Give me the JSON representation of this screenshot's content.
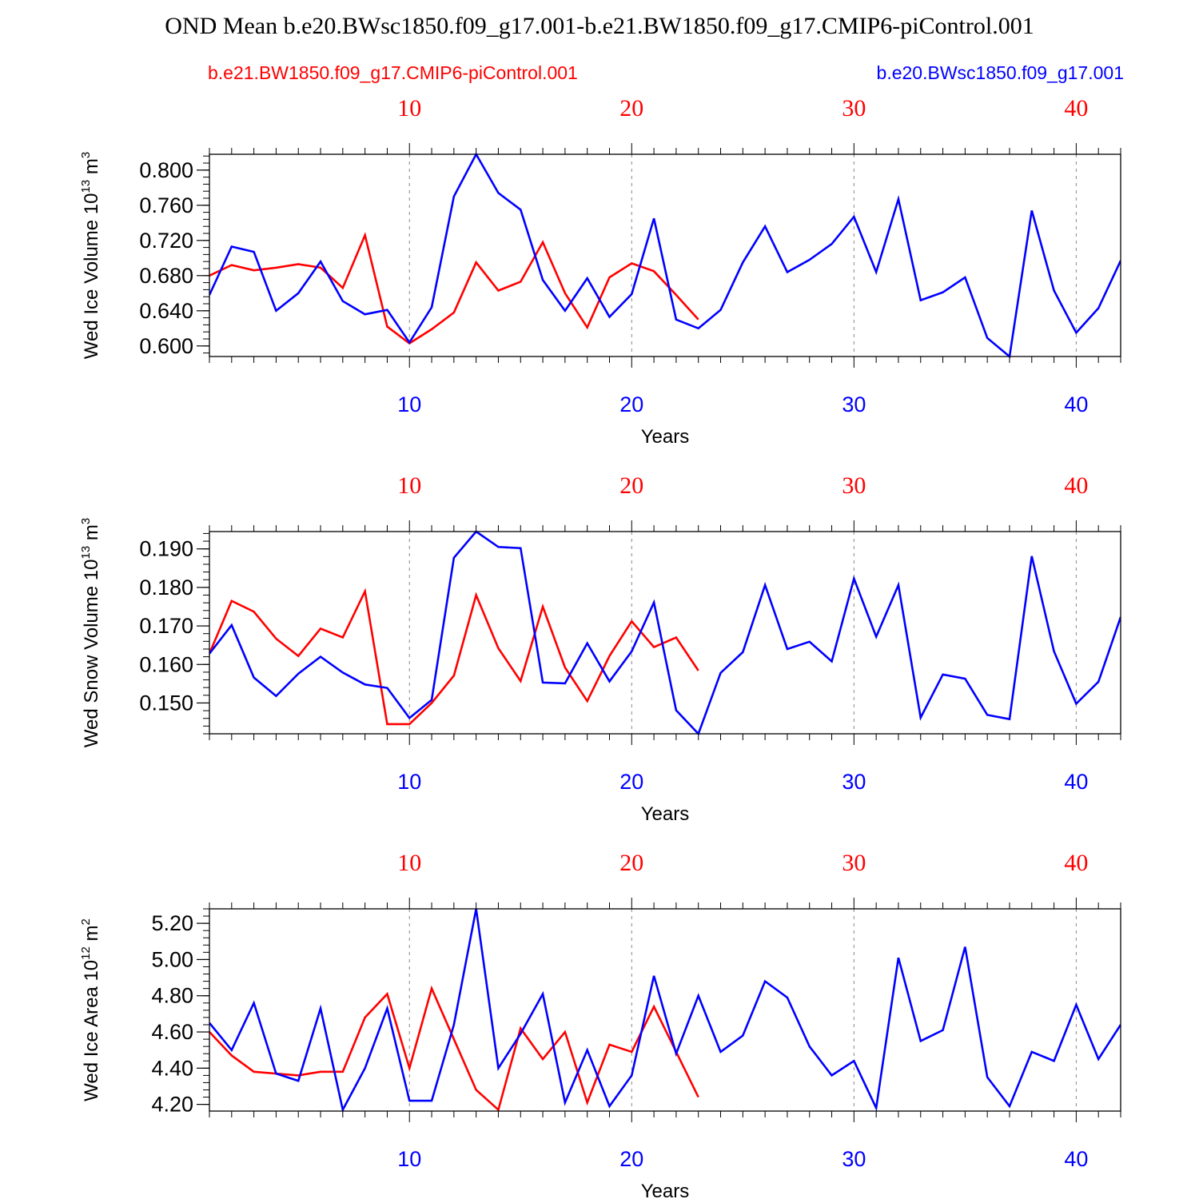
{
  "title": "OND Mean b.e20.BWsc1850.f09_g17.001-b.e21.BW1850.f09_g17.CMIP6-piControl.001",
  "legend": {
    "control": "b.e21.BW1850.f09_g17.CMIP6-piControl.001",
    "experiment": "b.e20.BWsc1850.f09_g17.001"
  },
  "colors": {
    "control": "#ff0000",
    "experiment": "#0000ff",
    "axis": "#000000",
    "grid": "#888888"
  },
  "chart_data": [
    {
      "type": "line",
      "title": "",
      "xlabel": "Years",
      "ylabel": "Wed Ice Volume",
      "ylabel_unit_base": "10",
      "ylabel_unit_exp": "13",
      "ylabel_unit_tail": "m",
      "ylabel_unit_tail_exp": "3",
      "xlim": [
        1,
        42
      ],
      "ylim": [
        0.588,
        0.818
      ],
      "yticks": [
        0.6,
        0.64,
        0.68,
        0.72,
        0.76,
        0.8
      ],
      "ytick_labels": [
        "0.600",
        "0.640",
        "0.680",
        "0.720",
        "0.760",
        "0.800"
      ],
      "xticks_top": [
        "10",
        "20",
        "30",
        "40"
      ],
      "xticks_bottom": [
        "10",
        "20",
        "30",
        "40"
      ],
      "series": [
        {
          "name": "b.e21.BW1850.f09_g17.CMIP6-piControl.001",
          "color": "#ff0000",
          "x": [
            1,
            2,
            3,
            4,
            5,
            6,
            7,
            8,
            9,
            10,
            11,
            12,
            13,
            14,
            15,
            16,
            17,
            18,
            19,
            20,
            21,
            22,
            23
          ],
          "values": [
            0.68,
            0.692,
            0.686,
            0.689,
            0.693,
            0.689,
            0.666,
            0.726,
            0.622,
            0.603,
            0.619,
            0.638,
            0.695,
            0.663,
            0.673,
            0.718,
            0.66,
            0.621,
            0.678,
            0.694,
            0.685,
            0.658,
            0.63
          ]
        },
        {
          "name": "b.e20.BWsc1850.f09_g17.001",
          "color": "#0000ff",
          "x": [
            1,
            2,
            3,
            4,
            5,
            6,
            7,
            8,
            9,
            10,
            11,
            12,
            13,
            14,
            15,
            16,
            17,
            18,
            19,
            20,
            21,
            22,
            23,
            24,
            25,
            26,
            27,
            28,
            29,
            30,
            31,
            32,
            33,
            34,
            35,
            36,
            37,
            38,
            39,
            40,
            41,
            42
          ],
          "values": [
            0.658,
            0.713,
            0.707,
            0.64,
            0.66,
            0.696,
            0.651,
            0.636,
            0.641,
            0.604,
            0.644,
            0.77,
            0.818,
            0.774,
            0.755,
            0.675,
            0.64,
            0.677,
            0.633,
            0.659,
            0.745,
            0.63,
            0.62,
            0.641,
            0.695,
            0.736,
            0.684,
            0.698,
            0.716,
            0.747,
            0.684,
            0.767,
            0.652,
            0.661,
            0.678,
            0.609,
            0.588,
            0.754,
            0.663,
            0.615,
            0.643,
            0.697
          ]
        }
      ]
    },
    {
      "type": "line",
      "title": "",
      "xlabel": "Years",
      "ylabel": "Wed Snow Volume",
      "ylabel_unit_base": "10",
      "ylabel_unit_exp": "13",
      "ylabel_unit_tail": "m",
      "ylabel_unit_tail_exp": "3",
      "xlim": [
        1,
        42
      ],
      "ylim": [
        0.142,
        0.1945
      ],
      "yticks": [
        0.15,
        0.16,
        0.17,
        0.18,
        0.19
      ],
      "ytick_labels": [
        "0.150",
        "0.160",
        "0.170",
        "0.180",
        "0.190"
      ],
      "xticks_top": [
        "10",
        "20",
        "30",
        "40"
      ],
      "xticks_bottom": [
        "10",
        "20",
        "30",
        "40"
      ],
      "series": [
        {
          "name": "b.e21.BW1850.f09_g17.CMIP6-piControl.001",
          "color": "#ff0000",
          "x": [
            1,
            2,
            3,
            4,
            5,
            6,
            7,
            8,
            9,
            10,
            11,
            12,
            13,
            14,
            15,
            16,
            17,
            18,
            19,
            20,
            21,
            22,
            23
          ],
          "values": [
            0.1628,
            0.1765,
            0.1737,
            0.1667,
            0.1622,
            0.1693,
            0.167,
            0.179,
            0.1445,
            0.1445,
            0.15,
            0.1571,
            0.178,
            0.1642,
            0.1557,
            0.175,
            0.1592,
            0.1505,
            0.1622,
            0.1712,
            0.1645,
            0.167,
            0.1584
          ]
        },
        {
          "name": "b.e20.BWsc1850.f09_g17.001",
          "color": "#0000ff",
          "x": [
            1,
            2,
            3,
            4,
            5,
            6,
            7,
            8,
            9,
            10,
            11,
            12,
            13,
            14,
            15,
            16,
            17,
            18,
            19,
            20,
            21,
            22,
            23,
            24,
            25,
            26,
            27,
            28,
            29,
            30,
            31,
            32,
            33,
            34,
            35,
            36,
            37,
            38,
            39,
            40,
            41,
            42
          ],
          "values": [
            0.1628,
            0.1702,
            0.1566,
            0.1518,
            0.1576,
            0.162,
            0.1579,
            0.1548,
            0.1539,
            0.1461,
            0.1508,
            0.1877,
            0.1945,
            0.1905,
            0.1902,
            0.1553,
            0.1551,
            0.1655,
            0.1556,
            0.1634,
            0.1761,
            0.1481,
            0.142,
            0.1578,
            0.1632,
            0.1806,
            0.164,
            0.1659,
            0.1608,
            0.1823,
            0.1672,
            0.1806,
            0.1462,
            0.1574,
            0.1563,
            0.1469,
            0.1458,
            0.1881,
            0.1634,
            0.1498,
            0.1555,
            0.1723
          ]
        }
      ]
    },
    {
      "type": "line",
      "title": "",
      "xlabel": "Years",
      "ylabel": "Wed Ice Area",
      "ylabel_unit_base": "10",
      "ylabel_unit_exp": "12",
      "ylabel_unit_tail": "m",
      "ylabel_unit_tail_exp": "2",
      "xlim": [
        1,
        42
      ],
      "ylim": [
        4.163,
        5.28
      ],
      "yticks": [
        4.2,
        4.4,
        4.6,
        4.8,
        5.0,
        5.2
      ],
      "ytick_labels": [
        "4.20",
        "4.40",
        "4.60",
        "4.80",
        "5.00",
        "5.20"
      ],
      "xticks_top": [
        "10",
        "20",
        "30",
        "40"
      ],
      "xticks_bottom": [
        "10",
        "20",
        "30",
        "40"
      ],
      "series": [
        {
          "name": "b.e21.BW1850.f09_g17.CMIP6-piControl.001",
          "color": "#ff0000",
          "x": [
            1,
            2,
            3,
            4,
            5,
            6,
            7,
            8,
            9,
            10,
            11,
            12,
            13,
            14,
            15,
            16,
            17,
            18,
            19,
            20,
            21,
            22,
            23
          ],
          "values": [
            4.6,
            4.47,
            4.38,
            4.37,
            4.36,
            4.38,
            4.38,
            4.68,
            4.81,
            4.4,
            4.84,
            4.56,
            4.28,
            4.17,
            4.62,
            4.45,
            4.6,
            4.21,
            4.53,
            4.49,
            4.74,
            4.49,
            4.24
          ]
        },
        {
          "name": "b.e20.BWsc1850.f09_g17.001",
          "color": "#0000ff",
          "x": [
            1,
            2,
            3,
            4,
            5,
            6,
            7,
            8,
            9,
            10,
            11,
            12,
            13,
            14,
            15,
            16,
            17,
            18,
            19,
            20,
            21,
            22,
            23,
            24,
            25,
            26,
            27,
            28,
            29,
            30,
            31,
            32,
            33,
            34,
            35,
            36,
            37,
            38,
            39,
            40,
            41,
            42
          ],
          "values": [
            4.65,
            4.5,
            4.76,
            4.37,
            4.33,
            4.73,
            4.17,
            4.4,
            4.73,
            4.22,
            4.22,
            4.64,
            5.28,
            4.4,
            4.59,
            4.81,
            4.21,
            4.5,
            4.19,
            4.36,
            4.91,
            4.48,
            4.8,
            4.49,
            4.58,
            4.88,
            4.79,
            4.52,
            4.36,
            4.44,
            4.18,
            5.01,
            4.55,
            4.61,
            5.07,
            4.35,
            4.19,
            4.49,
            4.44,
            4.75,
            4.45,
            4.64
          ]
        }
      ]
    }
  ]
}
